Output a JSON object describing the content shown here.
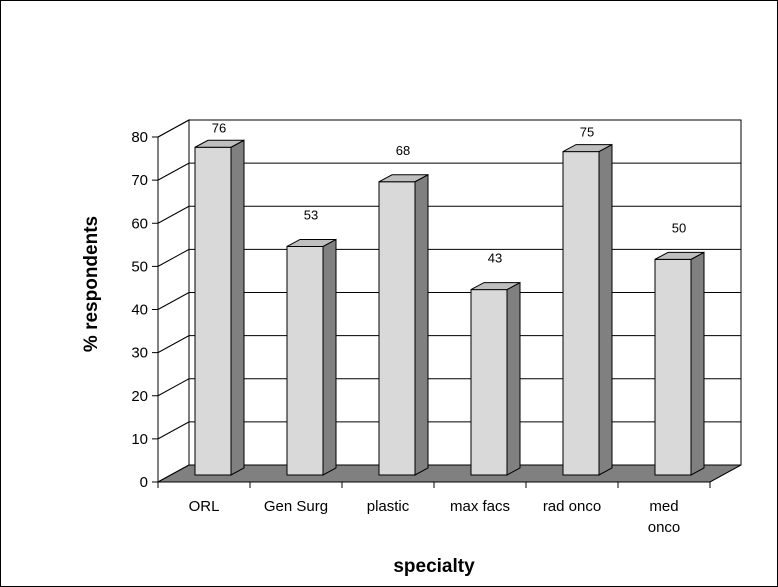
{
  "chart_data": {
    "type": "bar",
    "style": "3d-column",
    "categories": [
      [
        "ORL"
      ],
      [
        "Gen Surg"
      ],
      [
        "plastic"
      ],
      [
        "max facs"
      ],
      [
        "rad onco"
      ],
      [
        "med",
        "onco"
      ]
    ],
    "values": [
      76,
      53,
      68,
      43,
      75,
      50
    ],
    "data_labels": [
      "76",
      "53",
      "68",
      "43",
      "75",
      "50"
    ],
    "title": "",
    "xlabel": "specialty",
    "ylabel": "% respondents",
    "ylim": [
      0,
      80
    ],
    "yticks": [
      0,
      10,
      20,
      30,
      40,
      50,
      60,
      70,
      80
    ],
    "grid": true,
    "legend": "none",
    "colors": {
      "bar_front": "#d9d9d9",
      "bar_side": "#808080",
      "bar_top": "#bfbfbf",
      "floor": "#808080",
      "outline": "#000000",
      "background": "#ffffff"
    }
  }
}
